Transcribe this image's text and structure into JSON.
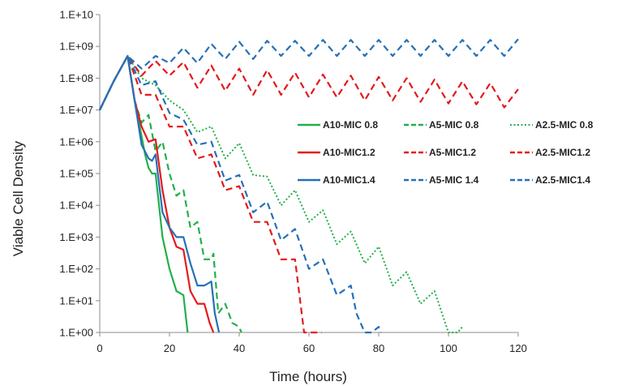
{
  "chart_data": {
    "type": "line",
    "xlabel": "Time (hours)",
    "ylabel": "Viable Cell Density",
    "y_scale": "log",
    "xlim": [
      0,
      120
    ],
    "ylim": [
      1,
      10000000000
    ],
    "x_ticks": [
      0,
      20,
      40,
      60,
      80,
      100,
      120
    ],
    "x_tick_labels": [
      "0",
      "20",
      "40",
      "60",
      "80",
      "100",
      "120"
    ],
    "y_ticks": [
      1,
      10,
      100,
      1000,
      10000,
      100000,
      1000000,
      10000000,
      100000000,
      1000000000,
      10000000000
    ],
    "y_tick_labels": [
      "1.E+00",
      "1.E+01",
      "1.E+02",
      "1.E+03",
      "1.E+04",
      "1.E+05",
      "1.E+06",
      "1.E+07",
      "1.E+08",
      "1.E+09",
      "1.E+10"
    ],
    "grid": false,
    "legend": "center-right, 3 columns",
    "series": [
      {
        "name": "A10-MIC 0.8",
        "color": "#22b04a",
        "dash": "solid",
        "x": [
          0,
          4,
          8,
          10,
          12,
          13,
          14,
          15,
          16,
          17,
          18,
          20,
          22,
          24,
          25.2
        ],
        "y": [
          10000000.0,
          80000000.0,
          500000000.0,
          20000000.0,
          1500000.0,
          400000.0,
          150000.0,
          100000.0,
          100000.0,
          10000.0,
          1000.0,
          100.0,
          20.0,
          15.0,
          1.0
        ]
      },
      {
        "name": "A5-MIC 0.8",
        "color": "#22b04a",
        "dash": "dashed",
        "x": [
          0,
          4,
          8,
          10,
          12,
          14,
          16,
          18,
          20,
          22,
          24,
          26,
          28,
          30,
          32,
          32.6,
          34,
          36,
          38,
          40,
          40.6
        ],
        "y": [
          10000000.0,
          80000000.0,
          500000000.0,
          20000000.0,
          4000000.0,
          7000000.0,
          500000.0,
          1000000.0,
          100000.0,
          20000.0,
          30000.0,
          2000.0,
          3000.0,
          200.0,
          200.0,
          300.0,
          4.0,
          8.0,
          2.0,
          1.5,
          1.0
        ]
      },
      {
        "name": "A2.5-MIC 0.8",
        "color": "#22b04a",
        "dash": "dotted",
        "x": [
          0,
          4,
          8,
          12,
          16,
          20,
          24,
          28,
          32,
          36,
          40,
          44,
          48,
          52,
          56,
          60,
          64,
          68,
          72,
          76,
          80,
          84,
          88,
          92,
          96,
          100,
          102.6,
          104
        ],
        "y": [
          10000000.0,
          80000000.0,
          500000000.0,
          100000000.0,
          60000000.0,
          20000000.0,
          10000000.0,
          2000000.0,
          3000000.0,
          300000.0,
          900000.0,
          90000.0,
          80000.0,
          10000.0,
          30000.0,
          3000.0,
          7000.0,
          600.0,
          1500.0,
          150.0,
          500.0,
          30.0,
          80.0,
          8.0,
          20.0,
          1.0,
          1.0,
          1.5
        ]
      },
      {
        "name": "A10-MIC1.2",
        "color": "#e31a1c",
        "dash": "solid",
        "x": [
          0,
          4,
          8,
          10,
          12,
          14,
          16,
          18,
          20,
          22,
          24,
          26,
          28,
          30,
          31.5,
          32.6
        ],
        "y": [
          10000000.0,
          80000000.0,
          500000000.0,
          20000000.0,
          3000000.0,
          1000000.0,
          1200000.0,
          30000.0,
          2000.0,
          500.0,
          400.0,
          20.0,
          8.0,
          8.0,
          2.0,
          1.0
        ]
      },
      {
        "name": "A5-MIC1.2",
        "color": "#e31a1c",
        "dash": "dashed",
        "x": [
          0,
          4,
          8,
          12,
          16,
          20,
          24,
          28,
          32,
          36,
          40,
          44,
          48,
          52,
          56,
          58.6,
          60,
          62,
          63.6
        ],
        "y": [
          10000000.0,
          80000000.0,
          500000000.0,
          30000000.0,
          30000000.0,
          3000000.0,
          3000000.0,
          300000.0,
          400000.0,
          30000.0,
          40000.0,
          3000.0,
          3000.0,
          200.0,
          200.0,
          1.0,
          1.0,
          1.0,
          1.0
        ]
      },
      {
        "name": "A2.5-MIC1.2",
        "color": "#e31a1c",
        "dash": "dashed",
        "x": [
          0,
          4,
          8,
          12,
          16,
          20,
          24,
          28,
          32,
          36,
          40,
          44,
          48,
          52,
          56,
          60,
          64,
          68,
          72,
          76,
          80,
          84,
          88,
          92,
          96,
          100,
          104,
          108,
          112,
          116,
          120
        ],
        "y": [
          10000000.0,
          80000000.0,
          500000000.0,
          120000000.0,
          350000000.0,
          120000000.0,
          320000000.0,
          50000000.0,
          250000000.0,
          40000000.0,
          200000000.0,
          30000000.0,
          180000000.0,
          30000000.0,
          150000000.0,
          25000000.0,
          130000000.0,
          25000000.0,
          120000000.0,
          20000000.0,
          110000000.0,
          20000000.0,
          100000000.0,
          18000000.0,
          90000000.0,
          16000000.0,
          80000000.0,
          15000000.0,
          70000000.0,
          12000000.0,
          45000000.0
        ]
      },
      {
        "name": "A10-MIC1.4",
        "color": "#2570b8",
        "dash": "solid",
        "x": [
          0,
          4,
          8,
          10,
          12,
          14,
          15,
          16,
          18,
          20,
          22,
          24,
          26,
          28,
          30,
          32,
          33,
          34.2
        ],
        "y": [
          10000000.0,
          80000000.0,
          500000000.0,
          20000000.0,
          800000.0,
          300000.0,
          250000.0,
          400000.0,
          6000.0,
          2000.0,
          1000.0,
          1000.0,
          150.0,
          30.0,
          30.0,
          40.0,
          4.0,
          1.0
        ]
      },
      {
        "name": "A5-MIC 1.4",
        "color": "#2570b8",
        "dash": "dashed",
        "x": [
          0,
          4,
          8,
          12,
          16,
          20,
          24,
          28,
          32,
          36,
          40,
          44,
          48,
          52,
          56,
          60,
          64,
          68,
          72,
          73.6,
          76,
          78,
          80,
          80.6
        ],
        "y": [
          10000000.0,
          80000000.0,
          500000000.0,
          60000000.0,
          80000000.0,
          8000000.0,
          5000000.0,
          800000.0,
          1000000.0,
          60000.0,
          90000.0,
          6000.0,
          13000.0,
          800.0,
          1800.0,
          100.0,
          200.0,
          15.0,
          30.0,
          4.0,
          1.0,
          1.0,
          1.5,
          1.0
        ]
      },
      {
        "name": "A2.5-MIC1.4",
        "color": "#2570b8",
        "dash": "dashed",
        "x": [
          0,
          4,
          8,
          12,
          16,
          20,
          24,
          28,
          32,
          36,
          40,
          44,
          48,
          52,
          56,
          60,
          64,
          68,
          72,
          76,
          80,
          84,
          88,
          92,
          96,
          100,
          104,
          108,
          112,
          116,
          120
        ],
        "y": [
          10000000.0,
          80000000.0,
          500000000.0,
          200000000.0,
          500000000.0,
          300000000.0,
          900000000.0,
          300000000.0,
          1200000000.0,
          400000000.0,
          1400000000.0,
          400000000.0,
          1500000000.0,
          500000000.0,
          1500000000.0,
          500000000.0,
          1600000000.0,
          500000000.0,
          1600000000.0,
          500000000.0,
          1600000000.0,
          500000000.0,
          1600000000.0,
          500000000.0,
          1600000000.0,
          500000000.0,
          1600000000.0,
          500000000.0,
          1600000000.0,
          500000000.0,
          1700000000.0
        ]
      }
    ]
  }
}
